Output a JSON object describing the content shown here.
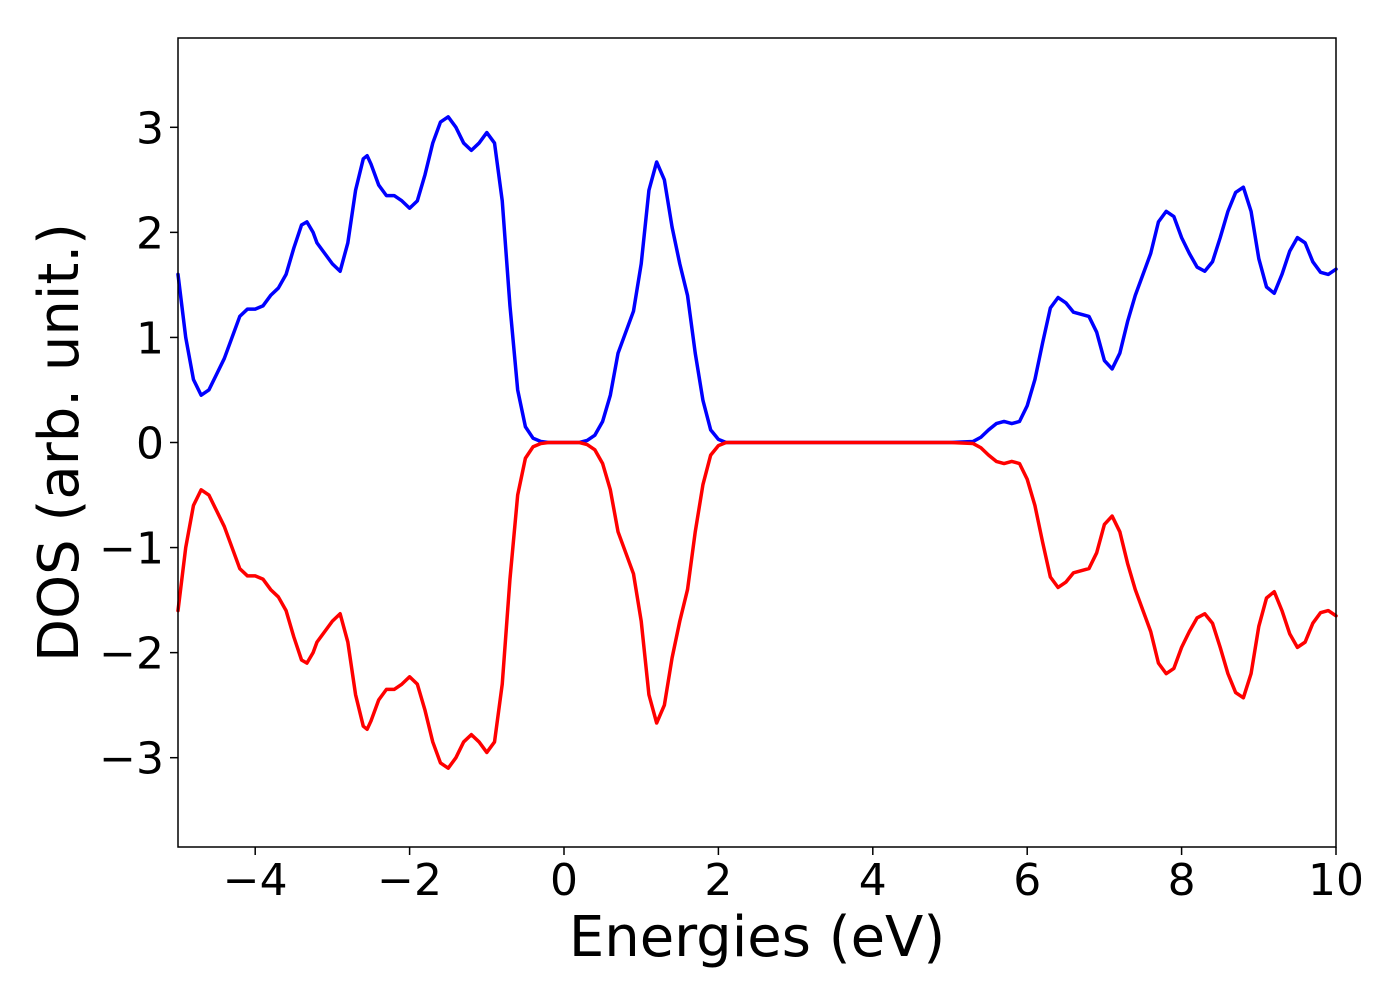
{
  "chart_data": {
    "type": "line",
    "title": "",
    "xlabel": "Energies (eV)",
    "ylabel": "DOS (arb. unit.)",
    "xlim": [
      -5,
      10
    ],
    "ylim": [
      -3.85,
      3.85
    ],
    "x_ticks": [
      -4,
      -2,
      0,
      2,
      4,
      6,
      8,
      10
    ],
    "y_ticks": [
      -3,
      -2,
      -1,
      0,
      1,
      2,
      3
    ],
    "x_tick_labels": [
      "−4",
      "−2",
      "0",
      "2",
      "4",
      "6",
      "8",
      "10"
    ],
    "y_tick_labels": [
      "−3",
      "−2",
      "−1",
      "0",
      "1",
      "2",
      "3"
    ],
    "grid": false,
    "legend": "none",
    "series": [
      {
        "color": "#0000ff",
        "points": [
          [
            -5.0,
            1.6
          ],
          [
            -4.9,
            1.0
          ],
          [
            -4.8,
            0.6
          ],
          [
            -4.7,
            0.45
          ],
          [
            -4.6,
            0.5
          ],
          [
            -4.5,
            0.65
          ],
          [
            -4.4,
            0.8
          ],
          [
            -4.3,
            1.0
          ],
          [
            -4.2,
            1.2
          ],
          [
            -4.1,
            1.27
          ],
          [
            -4.0,
            1.27
          ],
          [
            -3.9,
            1.3
          ],
          [
            -3.8,
            1.4
          ],
          [
            -3.7,
            1.47
          ],
          [
            -3.6,
            1.6
          ],
          [
            -3.5,
            1.85
          ],
          [
            -3.4,
            2.07
          ],
          [
            -3.33,
            2.1
          ],
          [
            -3.25,
            2.0
          ],
          [
            -3.2,
            1.9
          ],
          [
            -3.1,
            1.8
          ],
          [
            -3.0,
            1.7
          ],
          [
            -2.9,
            1.63
          ],
          [
            -2.8,
            1.9
          ],
          [
            -2.7,
            2.4
          ],
          [
            -2.6,
            2.7
          ],
          [
            -2.55,
            2.73
          ],
          [
            -2.5,
            2.65
          ],
          [
            -2.4,
            2.45
          ],
          [
            -2.3,
            2.35
          ],
          [
            -2.2,
            2.35
          ],
          [
            -2.1,
            2.3
          ],
          [
            -2.0,
            2.23
          ],
          [
            -1.9,
            2.3
          ],
          [
            -1.8,
            2.55
          ],
          [
            -1.7,
            2.85
          ],
          [
            -1.6,
            3.05
          ],
          [
            -1.5,
            3.1
          ],
          [
            -1.4,
            3.0
          ],
          [
            -1.3,
            2.85
          ],
          [
            -1.2,
            2.78
          ],
          [
            -1.1,
            2.85
          ],
          [
            -1.0,
            2.95
          ],
          [
            -0.9,
            2.85
          ],
          [
            -0.8,
            2.3
          ],
          [
            -0.7,
            1.3
          ],
          [
            -0.6,
            0.5
          ],
          [
            -0.5,
            0.15
          ],
          [
            -0.4,
            0.04
          ],
          [
            -0.3,
            0.01
          ],
          [
            -0.2,
            0.0
          ],
          [
            0.0,
            0.0
          ],
          [
            0.2,
            0.0
          ],
          [
            0.3,
            0.02
          ],
          [
            0.4,
            0.07
          ],
          [
            0.5,
            0.2
          ],
          [
            0.6,
            0.45
          ],
          [
            0.7,
            0.85
          ],
          [
            0.8,
            1.05
          ],
          [
            0.9,
            1.25
          ],
          [
            1.0,
            1.7
          ],
          [
            1.1,
            2.4
          ],
          [
            1.2,
            2.67
          ],
          [
            1.3,
            2.5
          ],
          [
            1.4,
            2.05
          ],
          [
            1.5,
            1.7
          ],
          [
            1.6,
            1.4
          ],
          [
            1.7,
            0.85
          ],
          [
            1.8,
            0.4
          ],
          [
            1.9,
            0.12
          ],
          [
            2.0,
            0.03
          ],
          [
            2.1,
            0.0
          ],
          [
            3.0,
            0.0
          ],
          [
            4.0,
            0.0
          ],
          [
            5.0,
            0.0
          ],
          [
            5.3,
            0.01
          ],
          [
            5.4,
            0.05
          ],
          [
            5.5,
            0.12
          ],
          [
            5.6,
            0.18
          ],
          [
            5.7,
            0.2
          ],
          [
            5.8,
            0.18
          ],
          [
            5.9,
            0.2
          ],
          [
            6.0,
            0.35
          ],
          [
            6.1,
            0.6
          ],
          [
            6.2,
            0.95
          ],
          [
            6.3,
            1.28
          ],
          [
            6.4,
            1.38
          ],
          [
            6.5,
            1.33
          ],
          [
            6.6,
            1.24
          ],
          [
            6.7,
            1.22
          ],
          [
            6.8,
            1.2
          ],
          [
            6.9,
            1.05
          ],
          [
            7.0,
            0.78
          ],
          [
            7.1,
            0.7
          ],
          [
            7.2,
            0.85
          ],
          [
            7.3,
            1.15
          ],
          [
            7.4,
            1.4
          ],
          [
            7.5,
            1.6
          ],
          [
            7.6,
            1.8
          ],
          [
            7.7,
            2.1
          ],
          [
            7.8,
            2.2
          ],
          [
            7.9,
            2.15
          ],
          [
            8.0,
            1.95
          ],
          [
            8.1,
            1.8
          ],
          [
            8.2,
            1.67
          ],
          [
            8.3,
            1.63
          ],
          [
            8.4,
            1.72
          ],
          [
            8.5,
            1.95
          ],
          [
            8.6,
            2.2
          ],
          [
            8.7,
            2.38
          ],
          [
            8.8,
            2.43
          ],
          [
            8.9,
            2.2
          ],
          [
            9.0,
            1.75
          ],
          [
            9.1,
            1.48
          ],
          [
            9.2,
            1.42
          ],
          [
            9.3,
            1.6
          ],
          [
            9.4,
            1.82
          ],
          [
            9.5,
            1.95
          ],
          [
            9.6,
            1.9
          ],
          [
            9.7,
            1.72
          ],
          [
            9.8,
            1.62
          ],
          [
            9.9,
            1.6
          ],
          [
            10.0,
            1.65
          ]
        ]
      },
      {
        "color": "#ff0000",
        "points": [
          [
            -5.0,
            -1.6
          ],
          [
            -4.9,
            -1.0
          ],
          [
            -4.8,
            -0.6
          ],
          [
            -4.7,
            -0.45
          ],
          [
            -4.6,
            -0.5
          ],
          [
            -4.5,
            -0.65
          ],
          [
            -4.4,
            -0.8
          ],
          [
            -4.3,
            -1.0
          ],
          [
            -4.2,
            -1.2
          ],
          [
            -4.1,
            -1.27
          ],
          [
            -4.0,
            -1.27
          ],
          [
            -3.9,
            -1.3
          ],
          [
            -3.8,
            -1.4
          ],
          [
            -3.7,
            -1.47
          ],
          [
            -3.6,
            -1.6
          ],
          [
            -3.5,
            -1.85
          ],
          [
            -3.4,
            -2.07
          ],
          [
            -3.33,
            -2.1
          ],
          [
            -3.25,
            -2.0
          ],
          [
            -3.2,
            -1.9
          ],
          [
            -3.1,
            -1.8
          ],
          [
            -3.0,
            -1.7
          ],
          [
            -2.9,
            -1.63
          ],
          [
            -2.8,
            -1.9
          ],
          [
            -2.7,
            -2.4
          ],
          [
            -2.6,
            -2.7
          ],
          [
            -2.55,
            -2.73
          ],
          [
            -2.5,
            -2.65
          ],
          [
            -2.4,
            -2.45
          ],
          [
            -2.3,
            -2.35
          ],
          [
            -2.2,
            -2.35
          ],
          [
            -2.1,
            -2.3
          ],
          [
            -2.0,
            -2.23
          ],
          [
            -1.9,
            -2.3
          ],
          [
            -1.8,
            -2.55
          ],
          [
            -1.7,
            -2.85
          ],
          [
            -1.6,
            -3.05
          ],
          [
            -1.5,
            -3.1
          ],
          [
            -1.4,
            -3.0
          ],
          [
            -1.3,
            -2.85
          ],
          [
            -1.2,
            -2.78
          ],
          [
            -1.1,
            -2.85
          ],
          [
            -1.0,
            -2.95
          ],
          [
            -0.9,
            -2.85
          ],
          [
            -0.8,
            -2.3
          ],
          [
            -0.7,
            -1.3
          ],
          [
            -0.6,
            -0.5
          ],
          [
            -0.5,
            -0.15
          ],
          [
            -0.4,
            -0.04
          ],
          [
            -0.3,
            -0.01
          ],
          [
            -0.2,
            0.0
          ],
          [
            0.0,
            0.0
          ],
          [
            0.2,
            0.0
          ],
          [
            0.3,
            -0.02
          ],
          [
            0.4,
            -0.07
          ],
          [
            0.5,
            -0.2
          ],
          [
            0.6,
            -0.45
          ],
          [
            0.7,
            -0.85
          ],
          [
            0.8,
            -1.05
          ],
          [
            0.9,
            -1.25
          ],
          [
            1.0,
            -1.7
          ],
          [
            1.1,
            -2.4
          ],
          [
            1.2,
            -2.67
          ],
          [
            1.3,
            -2.5
          ],
          [
            1.4,
            -2.05
          ],
          [
            1.5,
            -1.7
          ],
          [
            1.6,
            -1.4
          ],
          [
            1.7,
            -0.85
          ],
          [
            1.8,
            -0.4
          ],
          [
            1.9,
            -0.12
          ],
          [
            2.0,
            -0.03
          ],
          [
            2.1,
            0.0
          ],
          [
            3.0,
            0.0
          ],
          [
            4.0,
            0.0
          ],
          [
            5.0,
            0.0
          ],
          [
            5.3,
            -0.01
          ],
          [
            5.4,
            -0.05
          ],
          [
            5.5,
            -0.12
          ],
          [
            5.6,
            -0.18
          ],
          [
            5.7,
            -0.2
          ],
          [
            5.8,
            -0.18
          ],
          [
            5.9,
            -0.2
          ],
          [
            6.0,
            -0.35
          ],
          [
            6.1,
            -0.6
          ],
          [
            6.2,
            -0.95
          ],
          [
            6.3,
            -1.28
          ],
          [
            6.4,
            -1.38
          ],
          [
            6.5,
            -1.33
          ],
          [
            6.6,
            -1.24
          ],
          [
            6.7,
            -1.22
          ],
          [
            6.8,
            -1.2
          ],
          [
            6.9,
            -1.05
          ],
          [
            7.0,
            -0.78
          ],
          [
            7.1,
            -0.7
          ],
          [
            7.2,
            -0.85
          ],
          [
            7.3,
            -1.15
          ],
          [
            7.4,
            -1.4
          ],
          [
            7.5,
            -1.6
          ],
          [
            7.6,
            -1.8
          ],
          [
            7.7,
            -2.1
          ],
          [
            7.8,
            -2.2
          ],
          [
            7.9,
            -2.15
          ],
          [
            8.0,
            -1.95
          ],
          [
            8.1,
            -1.8
          ],
          [
            8.2,
            -1.67
          ],
          [
            8.3,
            -1.63
          ],
          [
            8.4,
            -1.72
          ],
          [
            8.5,
            -1.95
          ],
          [
            8.6,
            -2.2
          ],
          [
            8.7,
            -2.38
          ],
          [
            8.8,
            -2.43
          ],
          [
            8.9,
            -2.2
          ],
          [
            9.0,
            -1.75
          ],
          [
            9.1,
            -1.48
          ],
          [
            9.2,
            -1.42
          ],
          [
            9.3,
            -1.6
          ],
          [
            9.4,
            -1.82
          ],
          [
            9.5,
            -1.95
          ],
          [
            9.6,
            -1.9
          ],
          [
            9.7,
            -1.72
          ],
          [
            9.8,
            -1.62
          ],
          [
            9.9,
            -1.6
          ],
          [
            10.0,
            -1.65
          ]
        ]
      }
    ]
  }
}
